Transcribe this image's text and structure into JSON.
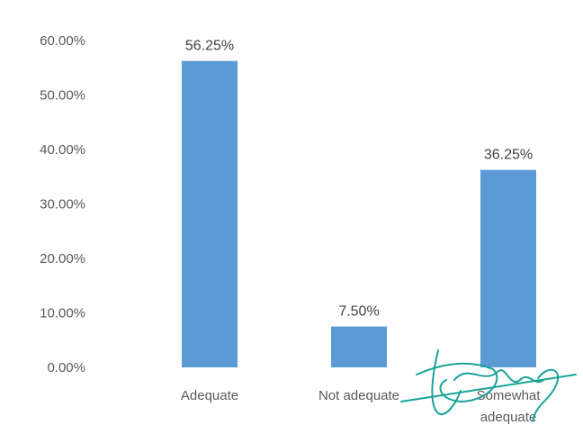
{
  "chart_data": {
    "type": "bar",
    "categories": [
      "Adequate",
      "Not adequate",
      "Somewhat adequate"
    ],
    "category_lines": [
      [
        "Adequate"
      ],
      [
        "Not adequate"
      ],
      [
        "Somewhat",
        "adequate"
      ]
    ],
    "values": [
      56.25,
      7.5,
      36.25
    ],
    "data_labels": [
      "56.25%",
      "7.50%",
      "36.25%"
    ],
    "y_ticks": [
      "0.00%",
      "10.00%",
      "20.00%",
      "30.00%",
      "40.00%",
      "50.00%",
      "60.00%"
    ],
    "ylim": [
      0,
      60
    ],
    "grid": false,
    "legend": "none",
    "title": "",
    "xlabel": "",
    "ylabel": "",
    "bar_color": "#5b9bd5",
    "signature_color": "#1aa39a"
  }
}
